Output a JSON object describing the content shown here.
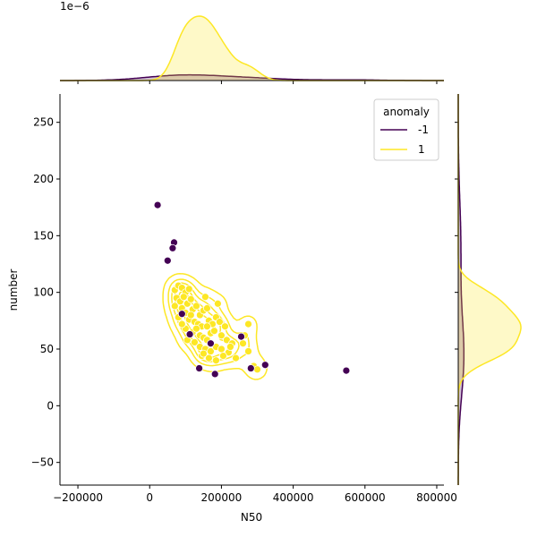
{
  "chart_data": {
    "type": "scatter",
    "subtype": "jointplot-with-kde",
    "xlabel": "N50",
    "ylabel": "number",
    "xlim": [
      -250000,
      820000
    ],
    "ylim": [
      -70,
      275
    ],
    "x_ticks": [
      -200000,
      0,
      200000,
      400000,
      600000,
      800000
    ],
    "x_tick_labels": [
      "−200000",
      "0",
      "200000",
      "400000",
      "600000",
      "800000"
    ],
    "y_ticks": [
      -50,
      0,
      50,
      100,
      150,
      200,
      250
    ],
    "y_tick_labels": [
      "−50",
      "0",
      "50",
      "100",
      "150",
      "200",
      "250"
    ],
    "top_marginal_offset_text": "1e−6",
    "grid": false,
    "legend": {
      "title": "anomaly",
      "placement": "top-right",
      "entries": [
        {
          "label": "-1",
          "color": "#440154"
        },
        {
          "label": "1",
          "color": "#fde725"
        }
      ]
    },
    "series": [
      {
        "name": "-1",
        "color": "#440154",
        "points": [
          [
            22000,
            177
          ],
          [
            68000,
            144
          ],
          [
            64000,
            139
          ],
          [
            50000,
            128
          ],
          [
            90000,
            81
          ],
          [
            112000,
            63
          ],
          [
            138000,
            33
          ],
          [
            182000,
            28
          ],
          [
            255000,
            61
          ],
          [
            282000,
            33
          ],
          [
            322000,
            36
          ],
          [
            548000,
            31
          ],
          [
            170000,
            55
          ]
        ]
      },
      {
        "name": "1",
        "color": "#fde725",
        "points": [
          [
            70000,
            102
          ],
          [
            80000,
            106
          ],
          [
            90000,
            104
          ],
          [
            100000,
            100
          ],
          [
            110000,
            103
          ],
          [
            75000,
            95
          ],
          [
            85000,
            92
          ],
          [
            95000,
            96
          ],
          [
            105000,
            90
          ],
          [
            115000,
            94
          ],
          [
            70000,
            88
          ],
          [
            90000,
            86
          ],
          [
            100000,
            82
          ],
          [
            120000,
            85
          ],
          [
            130000,
            88
          ],
          [
            140000,
            80
          ],
          [
            150000,
            84
          ],
          [
            160000,
            86
          ],
          [
            155000,
            96
          ],
          [
            190000,
            90
          ],
          [
            80000,
            78
          ],
          [
            110000,
            76
          ],
          [
            125000,
            74
          ],
          [
            135000,
            72
          ],
          [
            145000,
            70
          ],
          [
            165000,
            75
          ],
          [
            175000,
            72
          ],
          [
            185000,
            78
          ],
          [
            195000,
            74
          ],
          [
            210000,
            70
          ],
          [
            100000,
            68
          ],
          [
            120000,
            65
          ],
          [
            140000,
            62
          ],
          [
            150000,
            60
          ],
          [
            160000,
            58
          ],
          [
            170000,
            64
          ],
          [
            180000,
            66
          ],
          [
            200000,
            62
          ],
          [
            215000,
            58
          ],
          [
            230000,
            55
          ],
          [
            125000,
            56
          ],
          [
            140000,
            52
          ],
          [
            155000,
            50
          ],
          [
            170000,
            48
          ],
          [
            185000,
            52
          ],
          [
            200000,
            50
          ],
          [
            220000,
            47
          ],
          [
            240000,
            42
          ],
          [
            145000,
            44
          ],
          [
            165000,
            42
          ],
          [
            185000,
            40
          ],
          [
            205000,
            44
          ],
          [
            225000,
            52
          ],
          [
            260000,
            55
          ],
          [
            265000,
            62
          ],
          [
            275000,
            72
          ],
          [
            275000,
            48
          ],
          [
            290000,
            35
          ],
          [
            300000,
            32
          ],
          [
            130000,
            68
          ],
          [
            160000,
            70
          ],
          [
            115000,
            80
          ],
          [
            90000,
            72
          ],
          [
            105000,
            58
          ],
          [
            150000,
            46
          ]
        ]
      }
    ],
    "kde_levels": 5,
    "marginal_x": {
      "position": "top",
      "series": [
        "-1",
        "1"
      ]
    },
    "marginal_y": {
      "position": "right",
      "series": [
        "-1",
        "1"
      ]
    }
  }
}
